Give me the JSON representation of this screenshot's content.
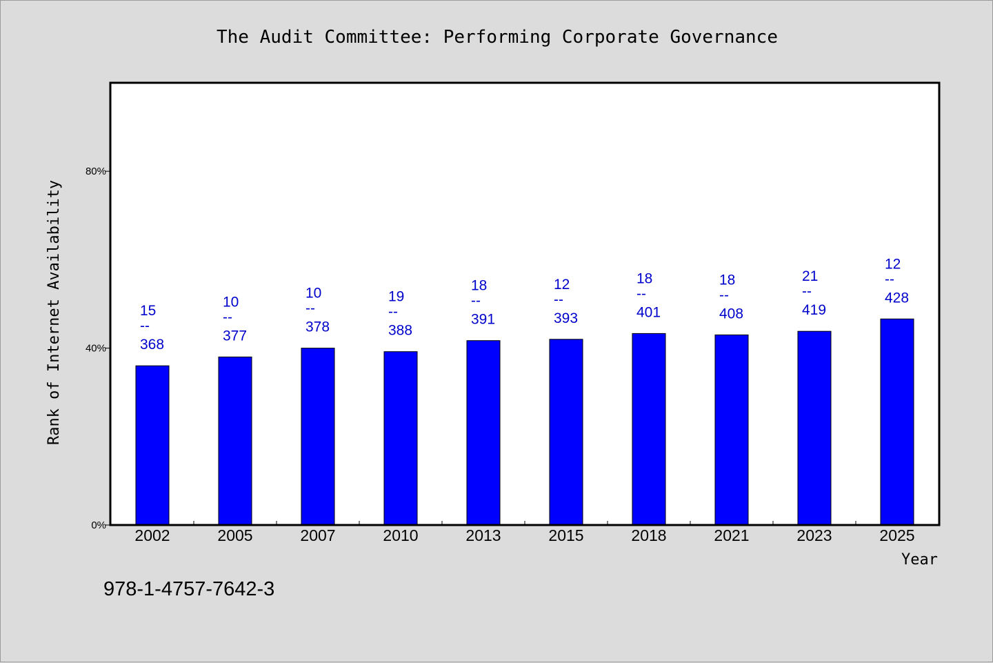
{
  "chart_data": {
    "type": "bar",
    "title": "The Audit Committee: Performing Corporate Governance",
    "xlabel": "Year",
    "ylabel": "Rank of Internet Availability",
    "categories": [
      "2002",
      "2005",
      "2007",
      "2010",
      "2013",
      "2015",
      "2018",
      "2021",
      "2023",
      "2025"
    ],
    "values": [
      36.0,
      38.0,
      40.0,
      39.2,
      41.7,
      42.0,
      43.3,
      43.0,
      43.8,
      46.6
    ],
    "data_labels": [
      {
        "top": "15",
        "mid": "--",
        "bottom": "368"
      },
      {
        "top": "10",
        "mid": "--",
        "bottom": "377"
      },
      {
        "top": "10",
        "mid": "--",
        "bottom": "378"
      },
      {
        "top": "19",
        "mid": "--",
        "bottom": "388"
      },
      {
        "top": "18",
        "mid": "--",
        "bottom": "391"
      },
      {
        "top": "12",
        "mid": "--",
        "bottom": "393"
      },
      {
        "top": "18",
        "mid": "--",
        "bottom": "401"
      },
      {
        "top": "18",
        "mid": "--",
        "bottom": "408"
      },
      {
        "top": "21",
        "mid": "--",
        "bottom": "419"
      },
      {
        "top": "12",
        "mid": "--",
        "bottom": "428"
      }
    ],
    "yticks": [
      {
        "value": 0,
        "label": "0%"
      },
      {
        "value": 40,
        "label": "40%"
      },
      {
        "value": 80,
        "label": "80%"
      }
    ],
    "ylim": [
      0,
      100
    ],
    "grid": false,
    "legend": "none",
    "colors": {
      "bar": "#0000ff",
      "bar_edge": "#000000",
      "data_label": "#0000cc",
      "plot_background": "#ffffff",
      "page_background": "#dcdcdc"
    }
  },
  "footer": {
    "isbn": "978-1-4757-7642-3"
  }
}
